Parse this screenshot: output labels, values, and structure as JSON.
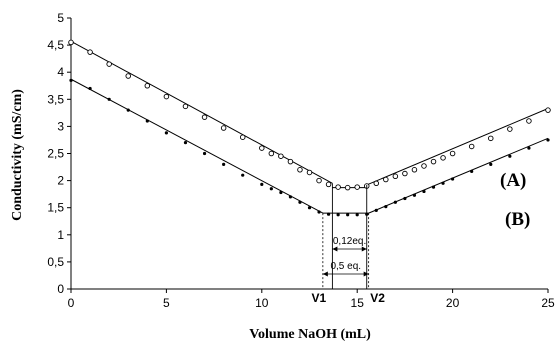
{
  "chart_data": {
    "type": "scatter",
    "xlabel": "Volume NaOH (mL)",
    "ylabel": "Conductivity (mS/cm)",
    "xlim": [
      0,
      25
    ],
    "ylim": [
      0,
      5
    ],
    "x_ticks": [
      "0",
      "5",
      "10",
      "15",
      "20",
      "25"
    ],
    "y_ticks": [
      "0",
      "0,5",
      "1",
      "1,5",
      "2",
      "2,5",
      "3",
      "3,5",
      "4",
      "4,5",
      "5"
    ],
    "grid": false,
    "series": [
      {
        "name": "(A)",
        "marker": "open-circle",
        "points": [
          [
            0,
            4.55
          ],
          [
            1,
            4.37
          ],
          [
            2,
            4.15
          ],
          [
            3,
            3.93
          ],
          [
            4,
            3.75
          ],
          [
            5,
            3.55
          ],
          [
            6,
            3.37
          ],
          [
            7,
            3.17
          ],
          [
            8,
            2.97
          ],
          [
            9,
            2.8
          ],
          [
            10,
            2.6
          ],
          [
            10.5,
            2.5
          ],
          [
            11,
            2.45
          ],
          [
            11.5,
            2.35
          ],
          [
            12,
            2.2
          ],
          [
            12.5,
            2.15
          ],
          [
            13,
            2.0
          ],
          [
            13.5,
            1.93
          ],
          [
            14,
            1.88
          ],
          [
            14.5,
            1.87
          ],
          [
            15,
            1.88
          ],
          [
            15.5,
            1.9
          ],
          [
            16,
            1.95
          ],
          [
            16.5,
            2.02
          ],
          [
            17,
            2.08
          ],
          [
            17.5,
            2.13
          ],
          [
            18,
            2.2
          ],
          [
            18.5,
            2.27
          ],
          [
            19,
            2.35
          ],
          [
            19.5,
            2.42
          ],
          [
            20,
            2.5
          ],
          [
            21,
            2.63
          ],
          [
            22,
            2.78
          ],
          [
            23,
            2.95
          ],
          [
            24,
            3.1
          ],
          [
            25,
            3.3
          ]
        ],
        "fit_lines": [
          [
            [
              0,
              4.57
            ],
            [
              13.7,
              1.95
            ]
          ],
          [
            [
              13.7,
              1.87
            ],
            [
              15.5,
              1.87
            ]
          ],
          [
            [
              15.5,
              1.92
            ],
            [
              25,
              3.33
            ]
          ]
        ]
      },
      {
        "name": "(B)",
        "marker": "filled-circle",
        "points": [
          [
            0,
            3.85
          ],
          [
            1,
            3.7
          ],
          [
            2,
            3.5
          ],
          [
            3,
            3.3
          ],
          [
            4,
            3.1
          ],
          [
            5,
            2.88
          ],
          [
            6,
            2.7
          ],
          [
            7,
            2.5
          ],
          [
            8,
            2.3
          ],
          [
            9,
            2.1
          ],
          [
            10,
            1.93
          ],
          [
            10.5,
            1.85
          ],
          [
            11,
            1.78
          ],
          [
            11.5,
            1.7
          ],
          [
            12,
            1.6
          ],
          [
            12.5,
            1.5
          ],
          [
            13,
            1.42
          ],
          [
            13.5,
            1.38
          ],
          [
            14,
            1.37
          ],
          [
            14.5,
            1.37
          ],
          [
            15,
            1.37
          ],
          [
            15.5,
            1.38
          ],
          [
            16,
            1.45
          ],
          [
            16.5,
            1.52
          ],
          [
            17,
            1.6
          ],
          [
            17.5,
            1.67
          ],
          [
            18,
            1.73
          ],
          [
            18.5,
            1.8
          ],
          [
            19,
            1.88
          ],
          [
            19.5,
            1.95
          ],
          [
            20,
            2.03
          ],
          [
            21,
            2.17
          ],
          [
            22,
            2.3
          ],
          [
            23,
            2.45
          ],
          [
            24,
            2.6
          ],
          [
            25,
            2.75
          ]
        ],
        "fit_lines": [
          [
            [
              0,
              3.87
            ],
            [
              13.2,
              1.4
            ]
          ],
          [
            [
              13.2,
              1.4
            ],
            [
              15.6,
              1.4
            ]
          ],
          [
            [
              15.6,
              1.4
            ],
            [
              25,
              2.78
            ]
          ]
        ]
      }
    ],
    "annotations": {
      "v1_label": "V1",
      "v2_label": "V2",
      "inner_label": "0,12eq.",
      "outer_label": "0,5 eq.",
      "v1_x": 13.2,
      "v2_x": 15.6,
      "inner_left_x": 13.7,
      "inner_right_x": 15.5
    }
  }
}
